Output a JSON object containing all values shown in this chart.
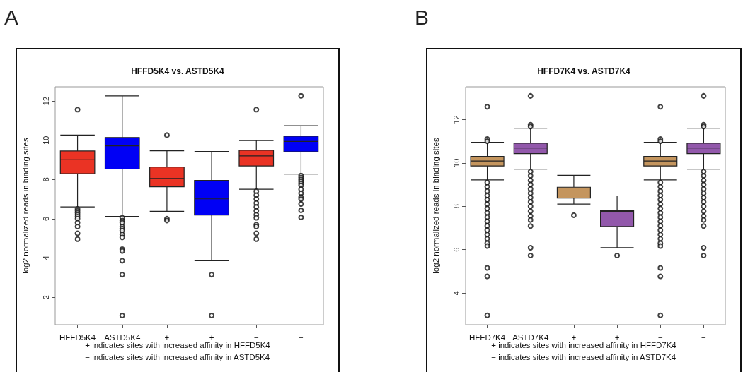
{
  "chart_data": [
    {
      "type": "box",
      "title": "HFFD5K4 vs. ASTD5K4",
      "ylabel": "log2 normalized reads in binding sites",
      "categories": [
        "HFFD5K4",
        "ASTD5K4",
        "+",
        "+",
        "−",
        "−"
      ],
      "colors": [
        "#ea3324",
        "#0000f5",
        "#ea3324",
        "#0000f5",
        "#ea3324",
        "#0000f5"
      ],
      "boxes": [
        {
          "low": 6.6,
          "q1": 8.29,
          "median": 9.0,
          "q3": 9.45,
          "high": 10.26,
          "outliers": [
            11.56,
            6.5,
            6.4,
            6.3,
            6.2,
            6.1,
            6.0,
            5.8,
            5.6,
            5.26,
            4.96
          ]
        },
        {
          "low": 6.12,
          "q1": 8.53,
          "median": 9.71,
          "q3": 10.14,
          "high": 12.26,
          "outliers": [
            6.05,
            5.9,
            5.8,
            5.6,
            5.5,
            5.4,
            5.2,
            5.05,
            4.45,
            4.36,
            3.86,
            3.15,
            1.07
          ]
        },
        {
          "low": 6.38,
          "q1": 7.63,
          "median": 8.05,
          "q3": 8.63,
          "high": 9.46,
          "outliers": [
            10.26,
            6.0,
            5.91
          ]
        },
        {
          "low": 3.86,
          "q1": 6.19,
          "median": 7.01,
          "q3": 7.95,
          "high": 9.43,
          "outliers": [
            3.15,
            1.07
          ]
        },
        {
          "low": 7.5,
          "q1": 8.69,
          "median": 9.2,
          "q3": 9.49,
          "high": 9.98,
          "outliers": [
            11.56,
            7.4,
            7.2,
            7.0,
            6.8,
            6.6,
            6.4,
            6.2,
            6.05,
            5.7,
            5.6,
            5.26,
            4.96
          ]
        },
        {
          "low": 8.27,
          "q1": 9.41,
          "median": 9.94,
          "q3": 10.21,
          "high": 10.74,
          "outliers": [
            12.26,
            8.2,
            8.1,
            8.0,
            7.9,
            7.8,
            7.7,
            7.5,
            7.3,
            7.1,
            7.0,
            6.75,
            6.43,
            6.07
          ]
        }
      ],
      "ylim": [
        0.6,
        12.72
      ],
      "yticks": [
        2,
        4,
        6,
        8,
        10,
        12
      ],
      "grid": false,
      "annotations": [
        "A",
        "+ indicates sites with increased affinity in HFFD5K4",
        "− indicates sites with increased affinity in ASTD5K4"
      ]
    },
    {
      "type": "box",
      "title": "HFFD7K4 vs. ASTD7K4",
      "ylabel": "log2 normalized reads in binding sites",
      "categories": [
        "HFFD7K4",
        "ASTD7K4",
        "+",
        "+",
        "−",
        "−"
      ],
      "colors": [
        "#c4955e",
        "#9258ab",
        "#c4955e",
        "#9258ab",
        "#c4955e",
        "#9258ab"
      ],
      "boxes": [
        {
          "low": 9.22,
          "q1": 9.86,
          "median": 10.09,
          "q3": 10.3,
          "high": 10.95,
          "outliers": [
            12.59,
            11.1,
            11.0,
            9.1,
            8.9,
            8.7,
            8.5,
            8.3,
            8.1,
            7.9,
            7.7,
            7.5,
            7.3,
            7.1,
            6.9,
            6.7,
            6.5,
            6.3,
            6.17,
            5.16,
            4.77,
            2.97
          ]
        },
        {
          "low": 9.71,
          "q1": 10.43,
          "median": 10.69,
          "q3": 10.91,
          "high": 11.6,
          "outliers": [
            13.09,
            11.76,
            11.68,
            9.6,
            9.4,
            9.2,
            9.0,
            8.8,
            8.6,
            8.4,
            8.2,
            8.0,
            7.77,
            7.55,
            7.37,
            7.09,
            6.09,
            5.73
          ]
        },
        {
          "low": 8.1,
          "q1": 8.38,
          "median": 8.48,
          "q3": 8.88,
          "high": 9.43,
          "outliers": [
            7.59
          ]
        },
        {
          "low": 6.09,
          "q1": 7.07,
          "median": 7.76,
          "q3": 7.8,
          "high": 8.48,
          "outliers": [
            5.73
          ]
        },
        {
          "low": 9.22,
          "q1": 9.86,
          "median": 10.09,
          "q3": 10.3,
          "high": 10.95,
          "outliers": [
            12.59,
            11.1,
            11.0,
            9.1,
            8.9,
            8.7,
            8.5,
            8.3,
            8.1,
            7.9,
            7.7,
            7.5,
            7.3,
            7.1,
            6.9,
            6.7,
            6.5,
            6.3,
            6.17,
            5.16,
            4.77,
            2.97
          ]
        },
        {
          "low": 9.71,
          "q1": 10.43,
          "median": 10.69,
          "q3": 10.91,
          "high": 11.6,
          "outliers": [
            13.09,
            11.76,
            11.68,
            9.6,
            9.4,
            9.2,
            9.0,
            8.8,
            8.6,
            8.4,
            8.2,
            8.0,
            7.77,
            7.55,
            7.37,
            7.09,
            6.09,
            5.73
          ]
        }
      ],
      "ylim": [
        2.54,
        13.51
      ],
      "yticks": [
        4,
        6,
        8,
        10,
        12
      ],
      "grid": false,
      "annotations": [
        "B",
        "+ indicates sites with increased affinity in HFFD7K4",
        "− indicates sites with increased affinity in ASTD7K4"
      ]
    }
  ]
}
